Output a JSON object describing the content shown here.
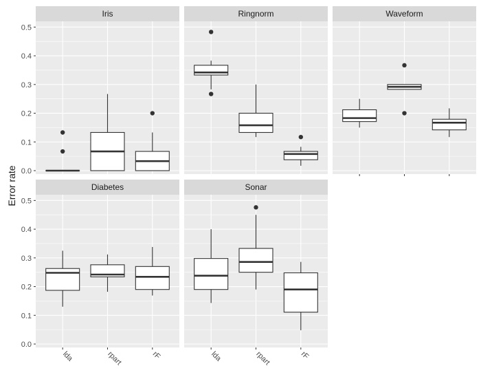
{
  "chart_data": {
    "type": "boxplot",
    "facet_wrap": true,
    "ylabel": "Error rate",
    "xlabel": "",
    "categories": [
      "lda",
      "rpart",
      "rF"
    ],
    "y_ticks": [
      "0.0",
      "0.1",
      "0.2",
      "0.3",
      "0.4",
      "0.5"
    ],
    "y_tick_values": [
      0,
      0.1,
      0.2,
      0.3,
      0.4,
      0.5
    ],
    "ylim": [
      -0.012,
      0.52
    ],
    "grid": true,
    "panels": [
      {
        "name": "Iris",
        "boxes": [
          {
            "category": "lda",
            "whisker_low": 0.0,
            "q1": 0.0,
            "median": 0.0,
            "q3": 0.0,
            "whisker_high": 0.0,
            "outliers": [
              0.067,
              0.133
            ]
          },
          {
            "category": "rpart",
            "whisker_low": 0.0,
            "q1": 0.0,
            "median": 0.067,
            "q3": 0.133,
            "whisker_high": 0.267,
            "outliers": []
          },
          {
            "category": "rF",
            "whisker_low": 0.0,
            "q1": 0.0,
            "median": 0.033,
            "q3": 0.067,
            "whisker_high": 0.133,
            "outliers": [
              0.2
            ]
          }
        ]
      },
      {
        "name": "Ringnorm",
        "boxes": [
          {
            "category": "lda",
            "whisker_low": 0.283,
            "q1": 0.333,
            "median": 0.342,
            "q3": 0.367,
            "whisker_high": 0.383,
            "outliers": [
              0.483,
              0.267
            ]
          },
          {
            "category": "rpart",
            "whisker_low": 0.117,
            "q1": 0.133,
            "median": 0.158,
            "q3": 0.2,
            "whisker_high": 0.3,
            "outliers": []
          },
          {
            "category": "rF",
            "whisker_low": 0.017,
            "q1": 0.038,
            "median": 0.058,
            "q3": 0.067,
            "whisker_high": 0.083,
            "outliers": [
              0.117
            ]
          }
        ]
      },
      {
        "name": "Waveform",
        "boxes": [
          {
            "category": "lda",
            "whisker_low": 0.15,
            "q1": 0.171,
            "median": 0.183,
            "q3": 0.212,
            "whisker_high": 0.25,
            "outliers": []
          },
          {
            "category": "rpart",
            "whisker_low": 0.283,
            "q1": 0.283,
            "median": 0.292,
            "q3": 0.3,
            "whisker_high": 0.3,
            "outliers": [
              0.367,
              0.2
            ]
          },
          {
            "category": "rF",
            "whisker_low": 0.117,
            "q1": 0.142,
            "median": 0.167,
            "q3": 0.179,
            "whisker_high": 0.217,
            "outliers": []
          }
        ]
      },
      {
        "name": "Diabetes",
        "boxes": [
          {
            "category": "lda",
            "whisker_low": 0.13,
            "q1": 0.187,
            "median": 0.248,
            "q3": 0.263,
            "whisker_high": 0.325,
            "outliers": []
          },
          {
            "category": "rpart",
            "whisker_low": 0.182,
            "q1": 0.234,
            "median": 0.242,
            "q3": 0.276,
            "whisker_high": 0.312,
            "outliers": []
          },
          {
            "category": "rF",
            "whisker_low": 0.169,
            "q1": 0.19,
            "median": 0.234,
            "q3": 0.27,
            "whisker_high": 0.338,
            "outliers": []
          }
        ]
      },
      {
        "name": "Sonar",
        "boxes": [
          {
            "category": "lda",
            "whisker_low": 0.143,
            "q1": 0.19,
            "median": 0.238,
            "q3": 0.298,
            "whisker_high": 0.4,
            "outliers": []
          },
          {
            "category": "rpart",
            "whisker_low": 0.19,
            "q1": 0.25,
            "median": 0.286,
            "q3": 0.333,
            "whisker_high": 0.45,
            "outliers": [
              0.476
            ]
          },
          {
            "category": "rF",
            "whisker_low": 0.048,
            "q1": 0.111,
            "median": 0.19,
            "q3": 0.248,
            "whisker_high": 0.286,
            "outliers": []
          }
        ]
      }
    ]
  },
  "colors": {
    "panel_bg": "#ebebeb",
    "strip_bg": "#d9d9d9",
    "grid": "#ffffff",
    "box_fill": "#ffffff",
    "box_line": "#333333",
    "text": "#1a1a1a",
    "tick_text": "#4d4d4d"
  }
}
